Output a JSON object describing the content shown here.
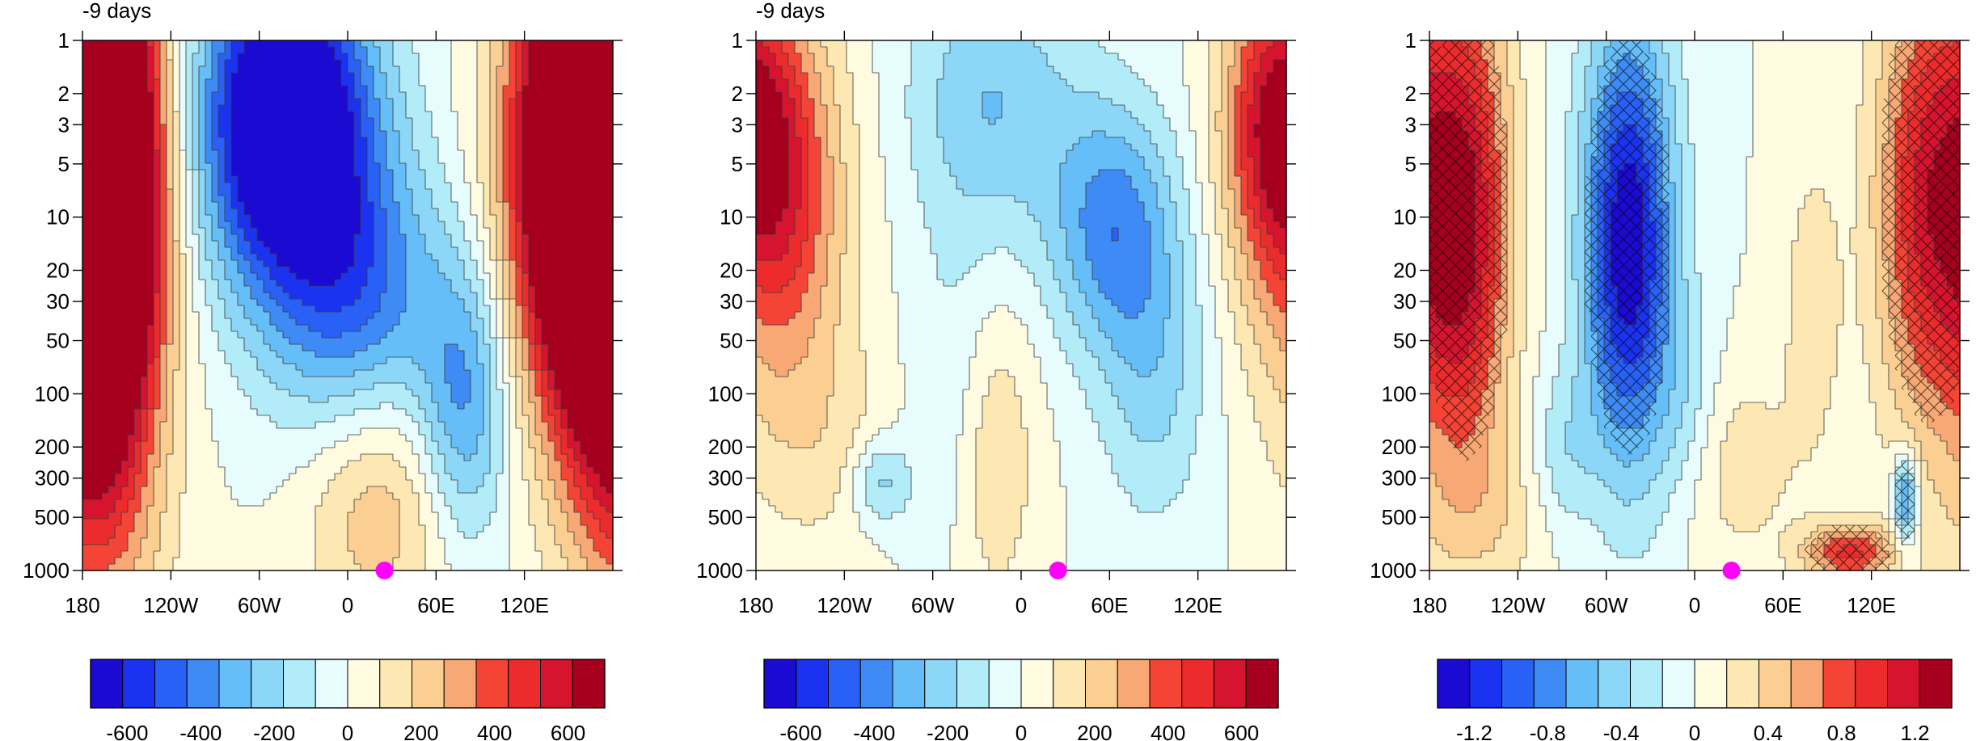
{
  "chart_data": [
    {
      "type": "heatmap",
      "title": "-9 days",
      "xlabel": "",
      "ylabel": "",
      "x_ticks": [
        "180",
        "120W",
        "60W",
        "0",
        "60E",
        "120E"
      ],
      "y_ticks": [
        "1",
        "2",
        "3",
        "5",
        "10",
        "20",
        "30",
        "50",
        "100",
        "200",
        "300",
        "500",
        "1000"
      ],
      "y_scale": "log",
      "y_reversed": true,
      "xlim": [
        -180,
        180
      ],
      "ylim": [
        1000,
        1
      ],
      "colorbar_ticks": [
        "-600",
        "-400",
        "-200",
        "0",
        "200",
        "400",
        "600"
      ],
      "colorbar_range": [
        -700,
        700
      ],
      "marker": {
        "lon": 25,
        "level": 1000,
        "color": "#ff00ff"
      },
      "blobs": [
        {
          "lon": -168,
          "logp": 0.95,
          "sx": 28,
          "sy": 1.15,
          "v": 1250
        },
        {
          "lon": 160,
          "logp": 0.7,
          "sx": 34,
          "sy": 0.95,
          "v": 1250
        },
        {
          "lon": -42,
          "logp": 0.45,
          "sx": 40,
          "sy": 0.65,
          "v": -980
        },
        {
          "lon": 8,
          "logp": 1.5,
          "sx": 42,
          "sy": 0.6,
          "v": -420
        },
        {
          "lon": 80,
          "logp": 2.05,
          "sx": 22,
          "sy": 0.55,
          "v": -360
        },
        {
          "lon": 20,
          "logp": 2.55,
          "sx": 35,
          "sy": 0.55,
          "v": 280
        },
        {
          "lon": -160,
          "logp": 2.9,
          "sx": 40,
          "sy": 0.4,
          "v": 60
        }
      ]
    },
    {
      "type": "heatmap",
      "title": "-9 days",
      "xlabel": "",
      "ylabel": "",
      "x_ticks": [
        "180",
        "120W",
        "60W",
        "0",
        "60E",
        "120E"
      ],
      "y_ticks": [
        "1",
        "2",
        "3",
        "5",
        "10",
        "20",
        "30",
        "50",
        "100",
        "200",
        "300",
        "500",
        "1000"
      ],
      "y_scale": "log",
      "y_reversed": true,
      "xlim": [
        -180,
        180
      ],
      "ylim": [
        1000,
        1
      ],
      "colorbar_ticks": [
        "-600",
        "-400",
        "-200",
        "0",
        "200",
        "400",
        "600"
      ],
      "colorbar_range": [
        -700,
        700
      ],
      "marker": {
        "lon": 25,
        "level": 1000,
        "color": "#ff00ff"
      },
      "blobs": [
        {
          "lon": -165,
          "logp": 0.9,
          "sx": 32,
          "sy": 0.75,
          "v": 480
        },
        {
          "lon": 172,
          "logp": 0.4,
          "sx": 24,
          "sy": 0.55,
          "v": 440
        },
        {
          "lon": 62,
          "logp": 1.05,
          "sx": 30,
          "sy": 0.5,
          "v": -380
        },
        {
          "lon": -20,
          "logp": 0.35,
          "sx": 40,
          "sy": 0.55,
          "v": -260
        },
        {
          "lon": 90,
          "logp": 1.9,
          "sx": 26,
          "sy": 0.6,
          "v": -200
        },
        {
          "lon": -45,
          "logp": 2.05,
          "sx": 22,
          "sy": 0.7,
          "v": -120
        },
        {
          "lon": -20,
          "logp": 2.35,
          "sx": 20,
          "sy": 0.6,
          "v": 200
        },
        {
          "lon": -95,
          "logp": 2.5,
          "sx": 14,
          "sy": 0.18,
          "v": -230
        },
        {
          "lon": -135,
          "logp": 2.3,
          "sx": 38,
          "sy": 0.45,
          "v": 110
        }
      ]
    },
    {
      "type": "heatmap",
      "title": "",
      "xlabel": "",
      "ylabel": "",
      "x_ticks": [
        "180",
        "120W",
        "60W",
        "0",
        "60E",
        "120E"
      ],
      "y_ticks": [
        "1",
        "2",
        "3",
        "5",
        "10",
        "20",
        "30",
        "50",
        "100",
        "200",
        "300",
        "500",
        "1000"
      ],
      "y_scale": "log",
      "y_reversed": true,
      "xlim": [
        -180,
        180
      ],
      "ylim": [
        1000,
        1
      ],
      "colorbar_ticks": [
        "-1.2",
        "-0.8",
        "-0.4",
        "0",
        "0.4",
        "0.8",
        "1.2"
      ],
      "colorbar_range": [
        -1.4,
        1.4
      ],
      "marker": {
        "lon": 25,
        "level": 1000,
        "color": "#ff00ff"
      },
      "hatch_note": "cross-hatched regions mark significance",
      "blobs": [
        {
          "lon": -155,
          "logp": 1.05,
          "sx": 22,
          "sy": 1.0,
          "v": 1.15
        },
        {
          "lon": 160,
          "logp": 0.9,
          "sx": 26,
          "sy": 0.95,
          "v": 1.1
        },
        {
          "lon": -45,
          "logp": 1.15,
          "sx": 22,
          "sy": 0.9,
          "v": -1.4
        },
        {
          "lon": 105,
          "logp": 2.9,
          "sx": 22,
          "sy": 0.12,
          "v": 0.9
        },
        {
          "lon": 143,
          "logp": 2.6,
          "sx": 6,
          "sy": 0.18,
          "v": -0.9
        },
        {
          "lon": 30,
          "logp": 2.4,
          "sx": 28,
          "sy": 0.4,
          "v": 0.28
        },
        {
          "lon": -90,
          "logp": 2.4,
          "sx": 16,
          "sy": 0.35,
          "v": -0.32
        },
        {
          "lon": -130,
          "logp": 2.7,
          "sx": 40,
          "sy": 0.3,
          "v": 0.22
        },
        {
          "lon": 80,
          "logp": 1.5,
          "sx": 14,
          "sy": 0.6,
          "v": 0.3
        },
        {
          "lon": -5,
          "logp": 2.05,
          "sx": 16,
          "sy": 0.4,
          "v": -0.25
        }
      ],
      "hatch_regions": [
        {
          "lon": -155,
          "logp": 1.05,
          "sx": 22,
          "sy": 1.0,
          "v": 1.15
        },
        {
          "lon": 160,
          "logp": 0.9,
          "sx": 26,
          "sy": 0.95,
          "v": 1.1
        },
        {
          "lon": -45,
          "logp": 1.15,
          "sx": 22,
          "sy": 0.9,
          "v": -1.4
        },
        {
          "lon": 105,
          "logp": 2.9,
          "sx": 22,
          "sy": 0.12,
          "v": 0.9
        },
        {
          "lon": 143,
          "logp": 2.6,
          "sx": 6,
          "sy": 0.18,
          "v": -0.9
        }
      ]
    }
  ],
  "colors": {
    "palette": [
      "#1b0bd2",
      "#1b33f0",
      "#2961f7",
      "#3e8bf6",
      "#66bef8",
      "#8cd7f8",
      "#b2ecf8",
      "#e6fcfd",
      "#fffbe1",
      "#fde8b3",
      "#fbcf91",
      "#f7a874",
      "#f44436",
      "#ec2b2d",
      "#d7142e",
      "#a7001f"
    ],
    "marker": "#ff00ff"
  }
}
